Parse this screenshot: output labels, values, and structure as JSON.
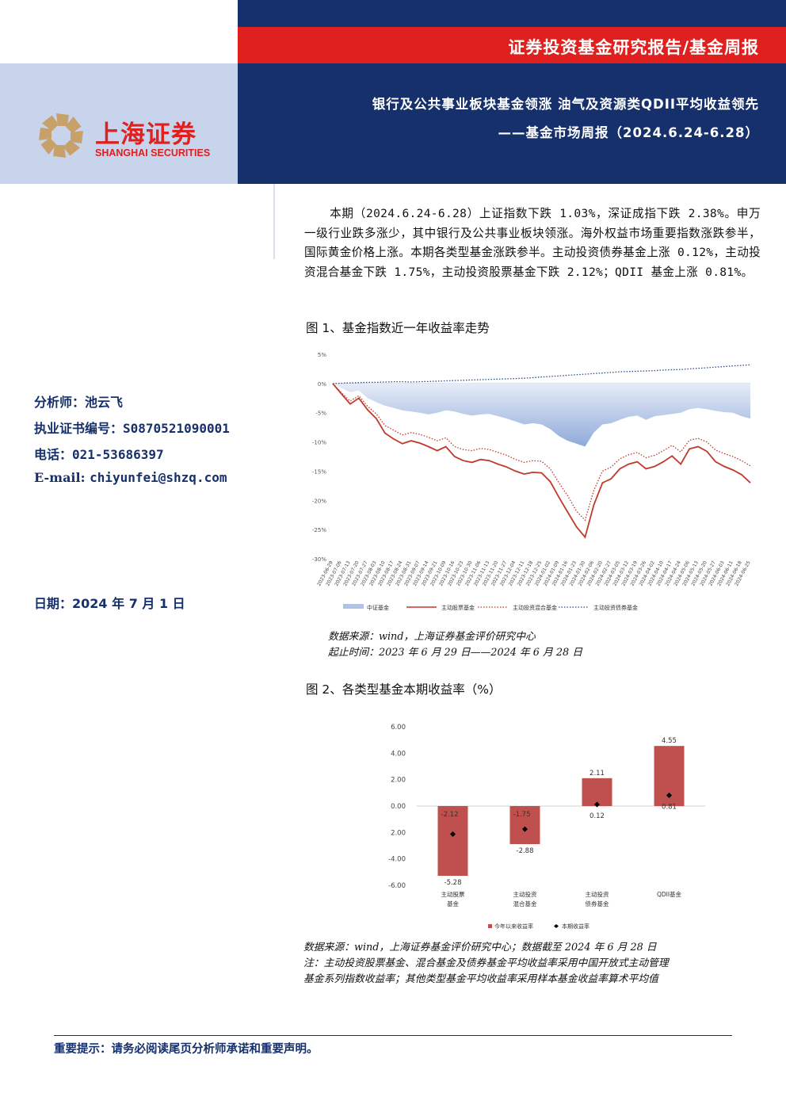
{
  "header": {
    "category": "证券投资基金研究报告/基金周报",
    "title": "银行及公共事业板块基金领涨 油气及资源类QDII平均收益领先",
    "subtitle": "——基金市场周报（2024.6.24-6.28）"
  },
  "logo": {
    "cn": "上海证券",
    "en": "SHANGHAI SECURITIES",
    "colors": {
      "red": "#e0201e",
      "gold": "#c8a06a"
    }
  },
  "summary": "本期（2024.6.24-6.28）上证指数下跌 1.03%，深证成指下跌 2.38%。申万一级行业跌多涨少，其中银行及公共事业板块领涨。海外权益市场重要指数涨跌参半，国际黄金价格上涨。本期各类型基金涨跌参半。主动投资债券基金上涨 0.12%，主动投资混合基金下跌 1.75%，主动投资股票基金下跌 2.12%；QDII 基金上涨 0.81%。",
  "analyst": {
    "name_label": "分析师：",
    "name": "池云飞",
    "cert_label": "执业证书编号：",
    "cert": "S0870521090001",
    "phone_label": "电话：",
    "phone": "021-53686397",
    "email_label": "E-mail:",
    "email": "chiyunfei@shzq.com"
  },
  "date": {
    "label": "日期：",
    "value": "2024 年 7 月 1 日"
  },
  "figure1": {
    "title": "图 1、基金指数近一年收益率走势",
    "source": "数据来源：wind，上海证券基金评价研究中心",
    "period": "起止时间：2023 年 6 月 29 日——2024 年 6 月 28 日"
  },
  "figure2": {
    "title": "图 2、各类型基金本期收益率（%）",
    "source": "数据来源：wind，上海证券基金评价研究中心；数据截至 2024 年 6 月 28 日",
    "note1": "注：主动投资股票基金、混合基金及债券基金平均收益率采用中国开放式主动管理",
    "note2": "基金系列指数收益率；其他类型基金平均收益率采用样本基金收益率算术平均值"
  },
  "footer": "重要提示：请务必阅读尾页分析师承诺和重要声明。",
  "chart_data": [
    {
      "type": "line",
      "title": "",
      "y_ticks": [
        "5%",
        "0%",
        "-5%",
        "-10%",
        "-15%",
        "-20%",
        "-25%",
        "-30%"
      ],
      "ylim": [
        -30,
        5
      ],
      "x_start": "2023-06-29",
      "x_end": "2024-06-28",
      "x_tick_labels": [
        "2023-06-29",
        "2023-07-06",
        "2023-07-13",
        "2023-07-20",
        "2023-07-27",
        "2023-08-03",
        "2023-08-10",
        "2023-08-17",
        "2023-08-24",
        "2023-08-31",
        "2023-09-07",
        "2023-09-14",
        "2023-09-21",
        "2023-10-09",
        "2023-10-16",
        "2023-10-23",
        "2023-10-30",
        "2023-11-06",
        "2023-11-13",
        "2023-11-20",
        "2023-11-27",
        "2023-12-04",
        "2023-12-11",
        "2023-12-18",
        "2023-12-25",
        "2024-01-02",
        "2024-01-09",
        "2024-01-16",
        "2024-01-23",
        "2024-01-30",
        "2024-02-06",
        "2024-02-20",
        "2024-02-27",
        "2024-03-05",
        "2024-03-12",
        "2024-03-19",
        "2024-03-26",
        "2024-04-02",
        "2024-04-10",
        "2024-04-17",
        "2024-04-24",
        "2024-05-06",
        "2024-05-13",
        "2024-05-20",
        "2024-05-27",
        "2024-06-03",
        "2024-06-11",
        "2024-06-18",
        "2024-06-25"
      ],
      "legend_position": "bottom",
      "series": [
        {
          "name": "中证基金",
          "type": "area",
          "color": "#8faad9",
          "values": [
            0,
            -0.8,
            -1.5,
            -1.2,
            -2.5,
            -3.2,
            -3.8,
            -4.2,
            -4.6,
            -4.8,
            -5.0,
            -5.3,
            -5.0,
            -4.6,
            -4.8,
            -5.2,
            -5.5,
            -5.3,
            -5.2,
            -5.6,
            -6.0,
            -6.5,
            -7.0,
            -6.8,
            -7.0,
            -7.8,
            -9.0,
            -9.8,
            -10.3,
            -10.8,
            -8.4,
            -7.0,
            -6.8,
            -6.2,
            -5.7,
            -5.5,
            -6.2,
            -5.6,
            -5.4,
            -5.2,
            -5.0,
            -4.4,
            -4.2,
            -4.4,
            -4.7,
            -4.9,
            -5.0,
            -5.6,
            -6.0
          ]
        },
        {
          "name": "主动股票基金",
          "type": "line",
          "color": "#c0392b",
          "values": [
            0,
            -1.8,
            -3.5,
            -2.5,
            -4.5,
            -6.0,
            -8.5,
            -9.5,
            -10.3,
            -9.8,
            -10.2,
            -10.8,
            -11.5,
            -10.8,
            -12.5,
            -13.2,
            -13.5,
            -13.0,
            -13.2,
            -13.8,
            -14.3,
            -15.0,
            -15.5,
            -15.2,
            -15.3,
            -16.8,
            -19.5,
            -22.0,
            -24.5,
            -26.3,
            -20.8,
            -17.0,
            -16.3,
            -14.6,
            -13.8,
            -13.4,
            -14.6,
            -14.2,
            -13.4,
            -12.4,
            -13.8,
            -11.2,
            -10.8,
            -11.6,
            -13.4,
            -14.2,
            -14.8,
            -15.6,
            -17.0
          ]
        },
        {
          "name": "主动投资混合基金",
          "type": "line",
          "dash": "dotted",
          "color": "#c0392b",
          "values": [
            0,
            -1.6,
            -3.0,
            -2.1,
            -3.9,
            -5.2,
            -7.2,
            -8.0,
            -8.8,
            -8.4,
            -8.7,
            -9.2,
            -9.8,
            -9.3,
            -10.8,
            -11.3,
            -11.5,
            -11.1,
            -11.3,
            -11.8,
            -12.3,
            -13.0,
            -13.5,
            -13.2,
            -13.3,
            -14.6,
            -17.0,
            -19.2,
            -21.8,
            -23.4,
            -18.3,
            -15.0,
            -14.3,
            -12.9,
            -12.2,
            -11.8,
            -12.7,
            -12.3,
            -11.5,
            -10.6,
            -11.7,
            -9.7,
            -9.4,
            -10.0,
            -11.4,
            -12.0,
            -12.5,
            -13.2,
            -14.1
          ]
        },
        {
          "name": "主动投资债券基金",
          "type": "line",
          "dash": "dotted",
          "color": "#2e4d8a",
          "values": [
            0,
            0.05,
            0.1,
            0.15,
            0.2,
            0.2,
            0.25,
            0.3,
            0.3,
            0.25,
            0.3,
            0.35,
            0.4,
            0.45,
            0.5,
            0.55,
            0.6,
            0.65,
            0.7,
            0.75,
            0.8,
            0.85,
            0.9,
            1.0,
            1.1,
            1.2,
            1.3,
            1.4,
            1.5,
            1.6,
            1.7,
            1.8,
            1.9,
            2.0,
            2.05,
            2.1,
            2.15,
            2.2,
            2.3,
            2.35,
            2.4,
            2.5,
            2.6,
            2.7,
            2.8,
            2.9,
            3.0,
            3.1,
            3.2
          ]
        }
      ]
    },
    {
      "type": "bar",
      "title": "",
      "categories": [
        "主动股票基金",
        "主动投资混合基金",
        "主动投资债券基金",
        "QDII基金"
      ],
      "categories_line1": [
        "主动股票",
        "主动投资",
        "主动投资",
        "QDII基金"
      ],
      "categories_line2": [
        "基金",
        "混合基金",
        "债券基金",
        ""
      ],
      "y_ticks": [
        "6.00",
        "4.00",
        "2.00",
        "0.00",
        "2.00",
        "-4.00",
        "-6.00"
      ],
      "ylim": [
        -6,
        6
      ],
      "legend_position": "bottom",
      "series": [
        {
          "name": "今年以来收益率",
          "type": "bar",
          "color": "#c0504d",
          "values": [
            -5.28,
            -2.88,
            2.11,
            4.55
          ],
          "labels": [
            "-5.28",
            "-2.88",
            "2.11",
            "4.55"
          ]
        },
        {
          "name": "本期收益率",
          "type": "marker",
          "color": "#000000",
          "values": [
            -2.12,
            -1.75,
            0.12,
            0.81
          ],
          "labels": [
            "-2.12",
            "-1.75",
            "0.12",
            "0.81"
          ]
        }
      ]
    }
  ]
}
